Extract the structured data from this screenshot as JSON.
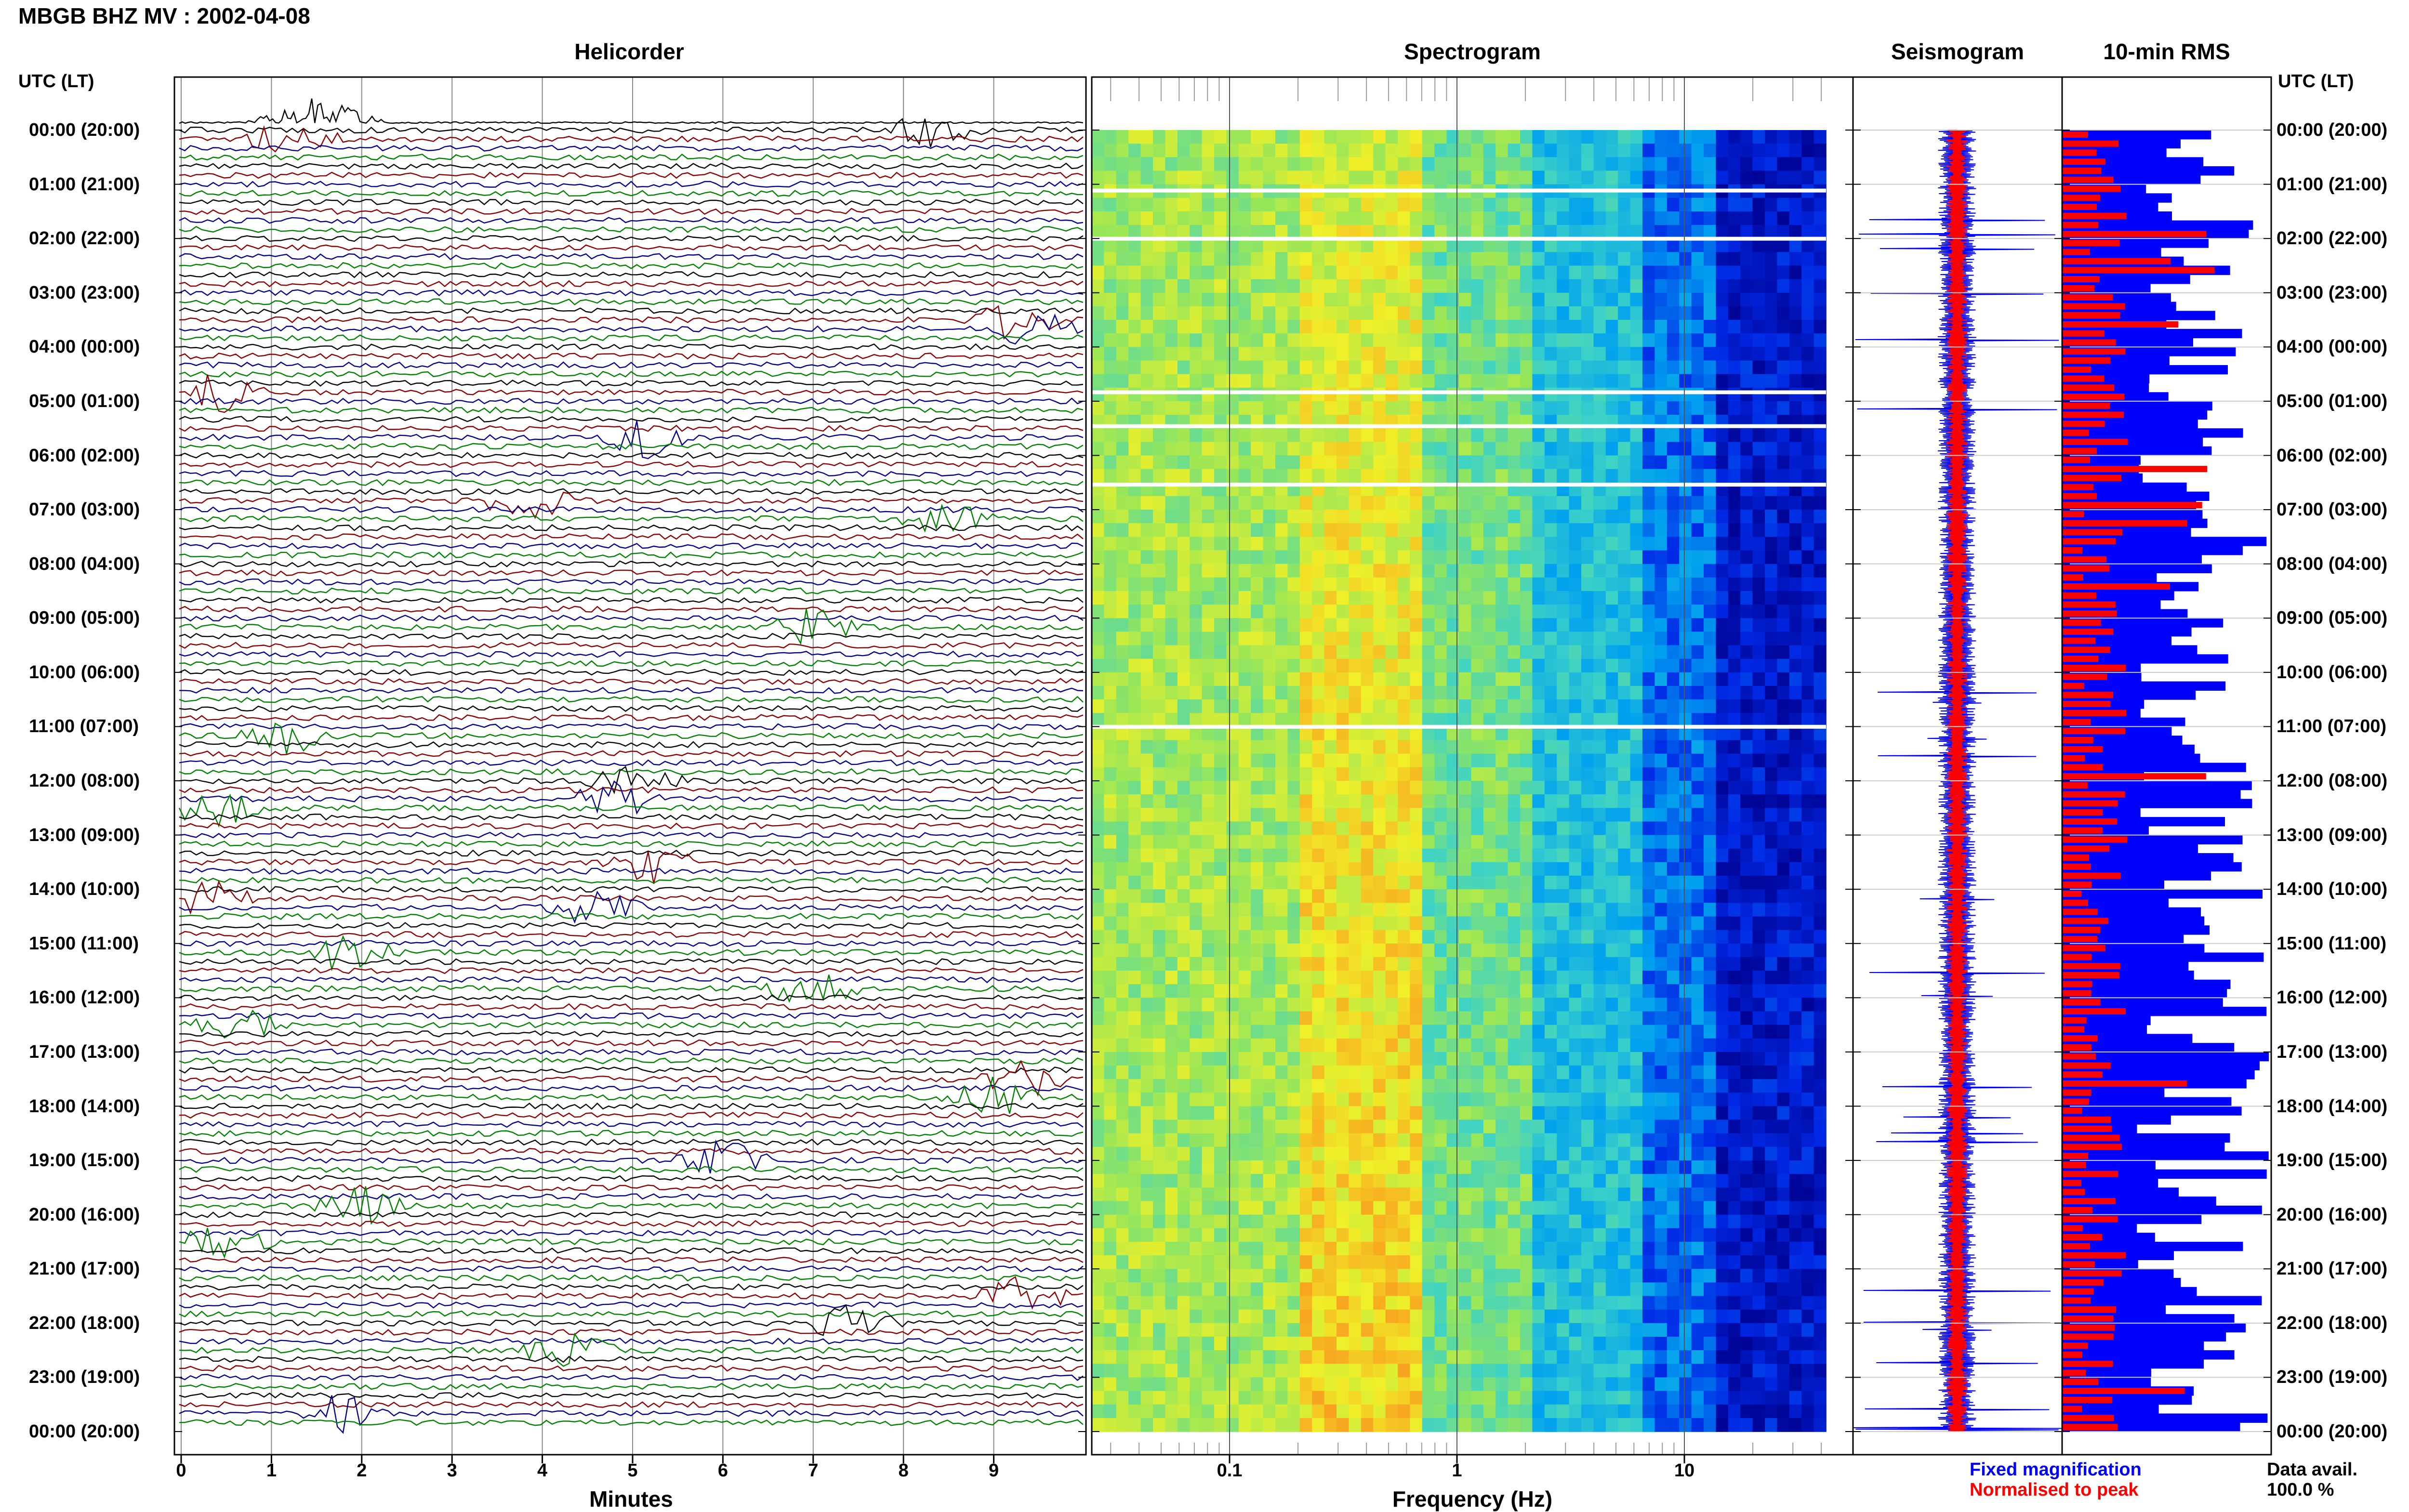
{
  "header": {
    "title": "MBGB BHZ MV : 2002-04-08",
    "time_axis_label": "UTC (LT)"
  },
  "panels": {
    "helicorder": "Helicorder",
    "spectrogram": "Spectrogram",
    "seismogram": "Seismogram",
    "rms": "10-min RMS"
  },
  "time_labels": [
    "00:00 (20:00)",
    "01:00 (21:00)",
    "02:00 (22:00)",
    "03:00 (23:00)",
    "04:00 (00:00)",
    "05:00 (01:00)",
    "06:00 (02:00)",
    "07:00 (03:00)",
    "08:00 (04:00)",
    "09:00 (05:00)",
    "10:00 (06:00)",
    "11:00 (07:00)",
    "12:00 (08:00)",
    "13:00 (09:00)",
    "14:00 (10:00)",
    "15:00 (11:00)",
    "16:00 (12:00)",
    "17:00 (13:00)",
    "18:00 (14:00)",
    "19:00 (15:00)",
    "20:00 (16:00)",
    "21:00 (17:00)",
    "22:00 (18:00)",
    "23:00 (19:00)",
    "00:00 (20:00)"
  ],
  "axes": {
    "minutes_label": "Minutes",
    "minutes_ticks": [
      "0",
      "1",
      "2",
      "3",
      "4",
      "5",
      "6",
      "7",
      "8",
      "9"
    ],
    "frequency_label": "Frequency (Hz)",
    "frequency_ticks": [
      "0.1",
      "1",
      "10"
    ]
  },
  "legend": {
    "fixed": "Fixed magnification",
    "normalised": "Normalised to peak",
    "data_avail_label": "Data avail.",
    "data_avail_value": "100.0 %"
  },
  "colors": {
    "trace_colors": [
      "#000000",
      "#8b0000",
      "#00008b",
      "#008000"
    ],
    "fixed_color": "#0000ff",
    "normalised_color": "#ff0000"
  }
}
